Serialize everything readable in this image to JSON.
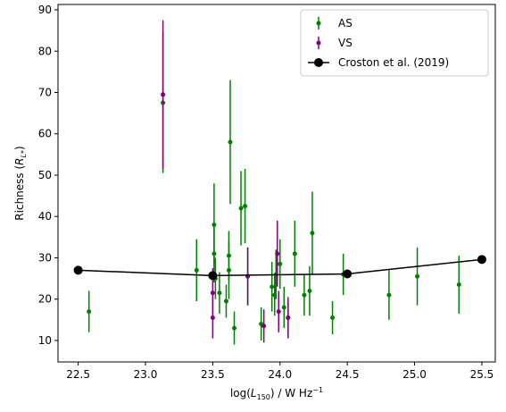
{
  "chart_data": {
    "type": "scatter",
    "xlabel": [
      "log(",
      "L",
      "150",
      ") / W Hz",
      "−1"
    ],
    "ylabel": [
      "Richness (",
      "R",
      "L*",
      ")"
    ],
    "xlim": [
      22.35,
      25.6
    ],
    "ylim": [
      4.8,
      91.3
    ],
    "xticks": [
      22.5,
      {
        "value": 23,
        "label": "23.0"
      },
      23.5,
      {
        "value": 24,
        "label": "24.0"
      },
      24.5,
      {
        "value": 25,
        "label": "25.0"
      },
      25.5
    ],
    "yticks": [
      10,
      20,
      30,
      40,
      50,
      60,
      70,
      80,
      90
    ],
    "legend": "upper right",
    "series": [
      {
        "name": "AS",
        "color": "#008000",
        "style": "errorbar",
        "x": [
          22.58,
          23.13,
          23.38,
          23.51,
          23.51,
          23.52,
          23.55,
          23.6,
          23.62,
          23.62,
          23.63,
          23.66,
          23.71,
          23.74,
          23.76,
          23.86,
          23.94,
          23.96,
          23.97,
          24.0,
          24.03,
          24.06,
          24.11,
          24.18,
          24.22,
          24.24,
          24.39,
          24.47,
          24.81,
          25.02,
          25.33
        ],
        "values": [
          17,
          67.5,
          27,
          38,
          31,
          25,
          21.5,
          19.5,
          27,
          30.5,
          58,
          13,
          42,
          42.5,
          25.5,
          14,
          23,
          21,
          26,
          28.5,
          18,
          15.5,
          31,
          21,
          22,
          36,
          15.5,
          26,
          21,
          25.5,
          23.5
        ],
        "errors": [
          5,
          17,
          7.5,
          10,
          7,
          5,
          5,
          4,
          7,
          6,
          15,
          4,
          9,
          9,
          7,
          4,
          6,
          5,
          6,
          6,
          5,
          4,
          8,
          5,
          6,
          10,
          4,
          5,
          6,
          7,
          7
        ]
      },
      {
        "name": "VS",
        "color": "#800080",
        "style": "errorbar",
        "x": [
          23.13,
          23.5,
          23.5,
          23.76,
          23.88,
          23.98,
          23.99,
          24.06
        ],
        "values": [
          69.5,
          21.5,
          15.5,
          25.5,
          13.5,
          31,
          17,
          15.5
        ],
        "errors": [
          18,
          6,
          5,
          7,
          4,
          8,
          5,
          5
        ]
      },
      {
        "name": "Croston et al. (2019)",
        "color": "#000000",
        "style": "line",
        "x": [
          22.5,
          23.5,
          24.5,
          25.5
        ],
        "values": [
          27,
          25.7,
          26.1,
          29.6
        ]
      }
    ]
  }
}
